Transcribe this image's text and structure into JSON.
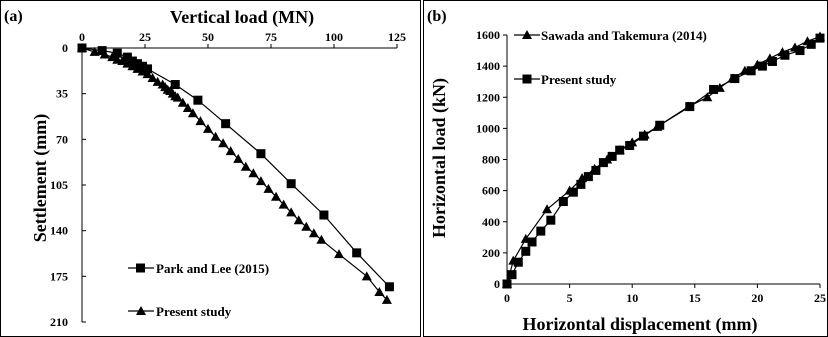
{
  "chart_data": [
    {
      "panel_label": "(a)",
      "type": "line",
      "title": "",
      "xlabel": "Vertical load (MN)",
      "ylabel": "Settlement (mm)",
      "x_axis_position": "top",
      "y_axis_inverted": true,
      "xlim": [
        0,
        125
      ],
      "ylim": [
        0,
        210
      ],
      "x_ticks": [
        "0",
        "25",
        "50",
        "75",
        "100",
        "125"
      ],
      "y_ticks": [
        "0",
        "35",
        "70",
        "105",
        "140",
        "175",
        "210"
      ],
      "grid": false,
      "legend": "bottom-left",
      "series": [
        {
          "name": "Park and Lee (2015)",
          "marker": "square",
          "x": [
            0,
            8,
            14,
            18,
            20,
            22,
            24,
            26,
            37,
            46,
            57,
            71,
            83,
            96,
            109,
            122
          ],
          "y": [
            0,
            2,
            4,
            7,
            10,
            12,
            14,
            16,
            28,
            40,
            58,
            81,
            104,
            128,
            157,
            183
          ]
        },
        {
          "name": "Present study",
          "marker": "triangle",
          "x": [
            0,
            5,
            9,
            12,
            14,
            16,
            18,
            20,
            22,
            24,
            26,
            28,
            30,
            32,
            33,
            34,
            35,
            36,
            37,
            38,
            40,
            42,
            44,
            47,
            50,
            53,
            56,
            59,
            62,
            65,
            68,
            71,
            74,
            77,
            80,
            83,
            86,
            89,
            92,
            95,
            102,
            113,
            118,
            121
          ],
          "y": [
            0,
            3,
            5,
            7,
            9,
            10,
            12,
            14,
            16,
            18,
            20,
            23,
            26,
            28,
            30,
            32,
            33,
            35,
            37,
            38,
            42,
            46,
            50,
            56,
            62,
            68,
            73,
            79,
            85,
            91,
            96,
            102,
            108,
            114,
            120,
            126,
            132,
            137,
            142,
            147,
            158,
            175,
            187,
            193
          ]
        }
      ]
    },
    {
      "panel_label": "(b)",
      "type": "line",
      "title": "",
      "xlabel": "Horizontal displacement (mm)",
      "ylabel": "Horizontal load (kN)",
      "xlim": [
        0,
        25
      ],
      "ylim": [
        0,
        1600
      ],
      "x_ticks": [
        "0",
        "5",
        "10",
        "15",
        "20",
        "25"
      ],
      "y_ticks": [
        "0",
        "200",
        "400",
        "600",
        "800",
        "1000",
        "1200",
        "1400",
        "1600"
      ],
      "grid": false,
      "legend": "top-left",
      "series": [
        {
          "name": "Sawada and Takemura (2014)",
          "marker": "triangle",
          "x": [
            0,
            0.5,
            1.5,
            3.2,
            5,
            6,
            7,
            8,
            9,
            10,
            11,
            12,
            14.5,
            16,
            17,
            18,
            19,
            20,
            21,
            22,
            23,
            24,
            25
          ],
          "y": [
            0,
            150,
            290,
            480,
            600,
            680,
            740,
            800,
            860,
            910,
            960,
            1010,
            1140,
            1200,
            1260,
            1320,
            1370,
            1410,
            1450,
            1490,
            1520,
            1560,
            1590
          ]
        },
        {
          "name": "Present study",
          "marker": "square",
          "x": [
            0,
            0.4,
            0.9,
            1.5,
            2,
            2.7,
            3.5,
            4.5,
            5.3,
            5.9,
            6.5,
            7.1,
            7.7,
            8.4,
            9.0,
            9.8,
            10.9,
            12.2,
            14.6,
            16.5,
            18.2,
            19.5,
            20.4,
            21.2,
            22.2,
            23.4,
            24.3,
            25.0
          ],
          "y": [
            0,
            60,
            140,
            210,
            270,
            340,
            410,
            530,
            590,
            640,
            690,
            730,
            780,
            820,
            860,
            890,
            950,
            1020,
            1140,
            1250,
            1320,
            1370,
            1400,
            1430,
            1470,
            1500,
            1540,
            1580
          ]
        }
      ]
    }
  ]
}
